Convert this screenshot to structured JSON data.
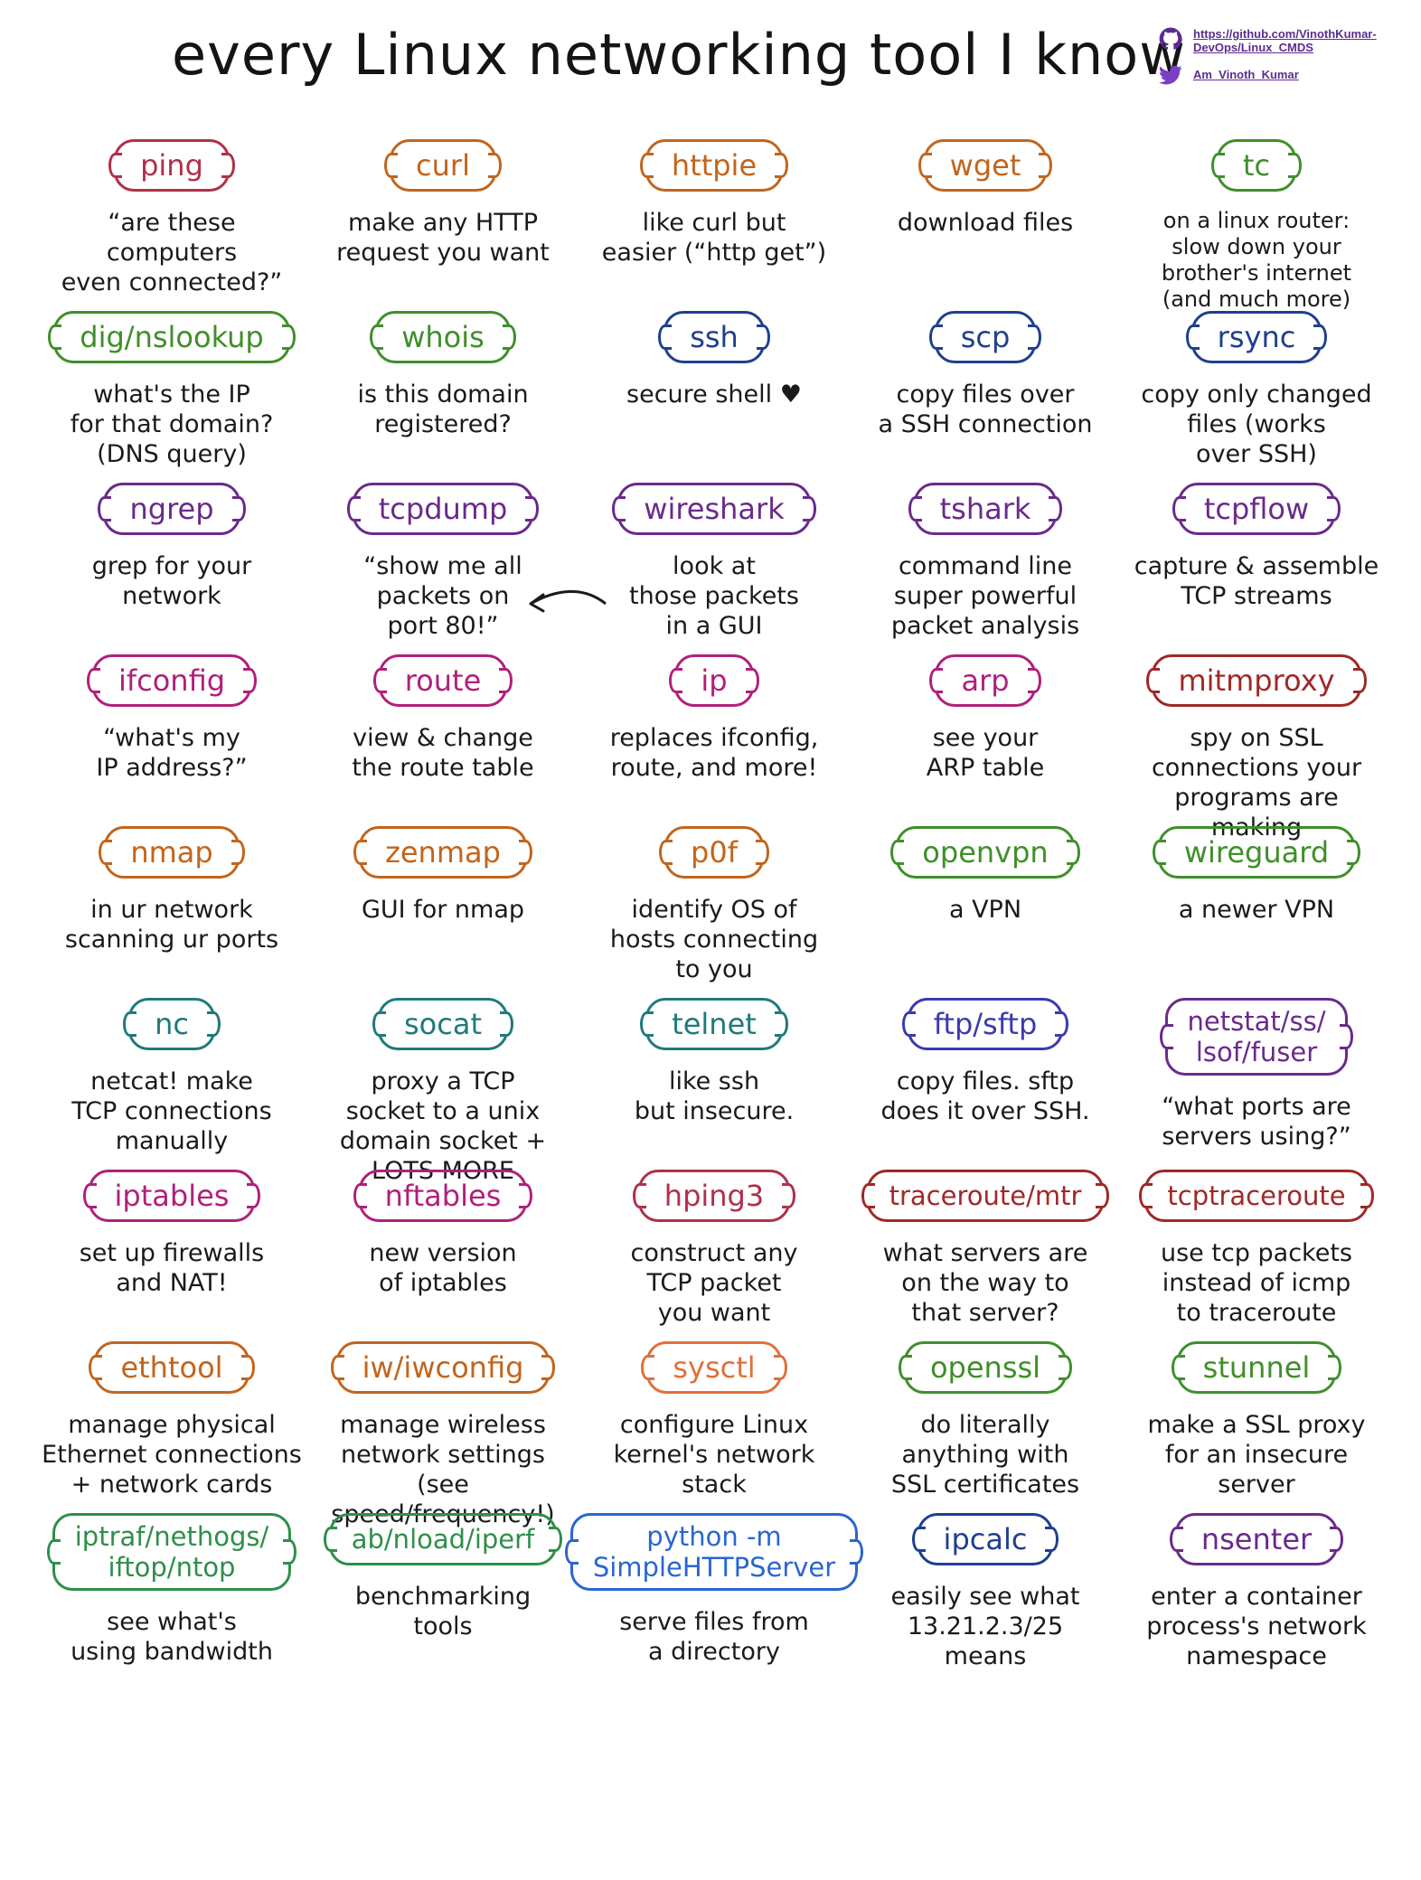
{
  "header": {
    "title": "every Linux networking tool I know",
    "github_url_line1": "https://github.com/VinothKumar-",
    "github_url_line2": "DevOps/Linux_CMDS",
    "twitter_handle": "Am_Vinoth_Kumar",
    "github_icon": "github-icon",
    "twitter_icon": "twitter-bird-icon",
    "social_color": "#5b2c91",
    "twitter_color": "#7b3fc4"
  },
  "tools": [
    {
      "name": "ping",
      "desc": "“are these computers\neven connected?”",
      "color": "#b0304a"
    },
    {
      "name": "curl",
      "desc": "make any HTTP\nrequest you want",
      "color": "#c2651c"
    },
    {
      "name": "httpie",
      "desc": "like curl but\neasier (“http get”)",
      "color": "#c2651c"
    },
    {
      "name": "wget",
      "desc": "download files",
      "color": "#c2651c"
    },
    {
      "name": "tc",
      "desc": "on a linux router:\nslow down your\nbrother's internet\n(and much more)",
      "color": "#3f8f2a"
    },
    {
      "name": "dig/nslookup",
      "desc": "what's the IP\nfor that domain?\n(DNS query)",
      "color": "#3f8f2a"
    },
    {
      "name": "whois",
      "desc": "is this domain\nregistered?",
      "color": "#3f8f2a"
    },
    {
      "name": "ssh",
      "desc": "secure shell ♥",
      "color": "#1f3f8f"
    },
    {
      "name": "scp",
      "desc": "copy files over\na SSH connection",
      "color": "#1f3f8f"
    },
    {
      "name": "rsync",
      "desc": "copy only changed\nfiles (works\nover SSH)",
      "color": "#1f3f8f"
    },
    {
      "name": "ngrep",
      "desc": "grep for your\nnetwork",
      "color": "#6a2a8a"
    },
    {
      "name": "tcpdump",
      "desc": "“show me all\npackets on\nport 80!”",
      "color": "#6a2a8a"
    },
    {
      "name": "wireshark",
      "desc": "look at\nthose packets\nin a GUI",
      "color": "#6a2a8a"
    },
    {
      "name": "tshark",
      "desc": "command line\nsuper powerful\npacket analysis",
      "color": "#6a2a8a"
    },
    {
      "name": "tcpflow",
      "desc": "capture & assemble\nTCP streams",
      "color": "#6a2a8a"
    },
    {
      "name": "ifconfig",
      "desc": "“what's my\nIP address?”",
      "color": "#b0207a"
    },
    {
      "name": "route",
      "desc": "view & change\nthe route table",
      "color": "#b0207a"
    },
    {
      "name": "ip",
      "desc": "replaces ifconfig,\nroute, and more!",
      "color": "#b0207a"
    },
    {
      "name": "arp",
      "desc": "see your\nARP table",
      "color": "#b0207a"
    },
    {
      "name": "mitmproxy",
      "desc": "spy on SSL\nconnections your\nprograms are making",
      "color": "#a02828"
    },
    {
      "name": "nmap",
      "desc": "in ur network\nscanning ur ports",
      "color": "#c2651c"
    },
    {
      "name": "zenmap",
      "desc": "GUI for nmap",
      "color": "#c2651c"
    },
    {
      "name": "p0f",
      "desc": "identify OS of\nhosts connecting\nto you",
      "color": "#c2651c"
    },
    {
      "name": "openvpn",
      "desc": "a VPN",
      "color": "#3f8f2a"
    },
    {
      "name": "wireguard",
      "desc": "a newer VPN",
      "color": "#3f8f2a"
    },
    {
      "name": "nc",
      "desc": "netcat! make\nTCP connections\nmanually",
      "color": "#1f7a7a"
    },
    {
      "name": "socat",
      "desc": "proxy a TCP\nsocket to a unix\ndomain socket + LOTS MORE",
      "color": "#1f7a7a"
    },
    {
      "name": "telnet",
      "desc": "like ssh\nbut insecure.",
      "color": "#1f7a7a"
    },
    {
      "name": "ftp/sftp",
      "desc": "copy files. sftp\ndoes it over SSH.",
      "color": "#3a3ab0"
    },
    {
      "name": "netstat/ss/\nlsof/fuser",
      "desc": "“what ports are\nservers using?”",
      "color": "#6a2a8a"
    },
    {
      "name": "iptables",
      "desc": "set up firewalls\nand NAT!",
      "color": "#b0207a"
    },
    {
      "name": "nftables",
      "desc": "new version\nof iptables",
      "color": "#b0207a"
    },
    {
      "name": "hping3",
      "desc": "construct any\nTCP packet\nyou want",
      "color": "#b0304a"
    },
    {
      "name": "traceroute/mtr",
      "desc": "what servers are\non the way to\nthat server?",
      "color": "#a02828"
    },
    {
      "name": "tcptraceroute",
      "desc": "use tcp packets\ninstead of icmp\nto traceroute",
      "color": "#a02828"
    },
    {
      "name": "ethtool",
      "desc": "manage physical\nEthernet connections\n+ network cards",
      "color": "#c2651c"
    },
    {
      "name": "iw/iwconfig",
      "desc": "manage wireless\nnetwork settings\n(see speed/frequency!)",
      "color": "#c2651c"
    },
    {
      "name": "sysctl",
      "desc": "configure Linux\nkernel's network\nstack",
      "color": "#e0703a"
    },
    {
      "name": "openssl",
      "desc": "do literally\nanything with\nSSL certificates",
      "color": "#3f8f2a"
    },
    {
      "name": "stunnel",
      "desc": "make a SSL proxy\nfor an insecure\nserver",
      "color": "#3f8f2a"
    },
    {
      "name": "iptraf/nethogs/\niftop/ntop",
      "desc": "see what's\nusing bandwidth",
      "color": "#2f8f4a"
    },
    {
      "name": "ab/nload/iperf",
      "desc": "benchmarking\ntools",
      "color": "#2f8f4a"
    },
    {
      "name": "python -m\nSimpleHTTPServer",
      "desc": "serve files from\na directory",
      "color": "#2a66d0"
    },
    {
      "name": "ipcalc",
      "desc": "easily see what\n13.21.2.3/25\nmeans",
      "color": "#1f3f8f"
    },
    {
      "name": "nsenter",
      "desc": "enter a container\nprocess's network\nnamespace",
      "color": "#6a2a8a"
    }
  ]
}
